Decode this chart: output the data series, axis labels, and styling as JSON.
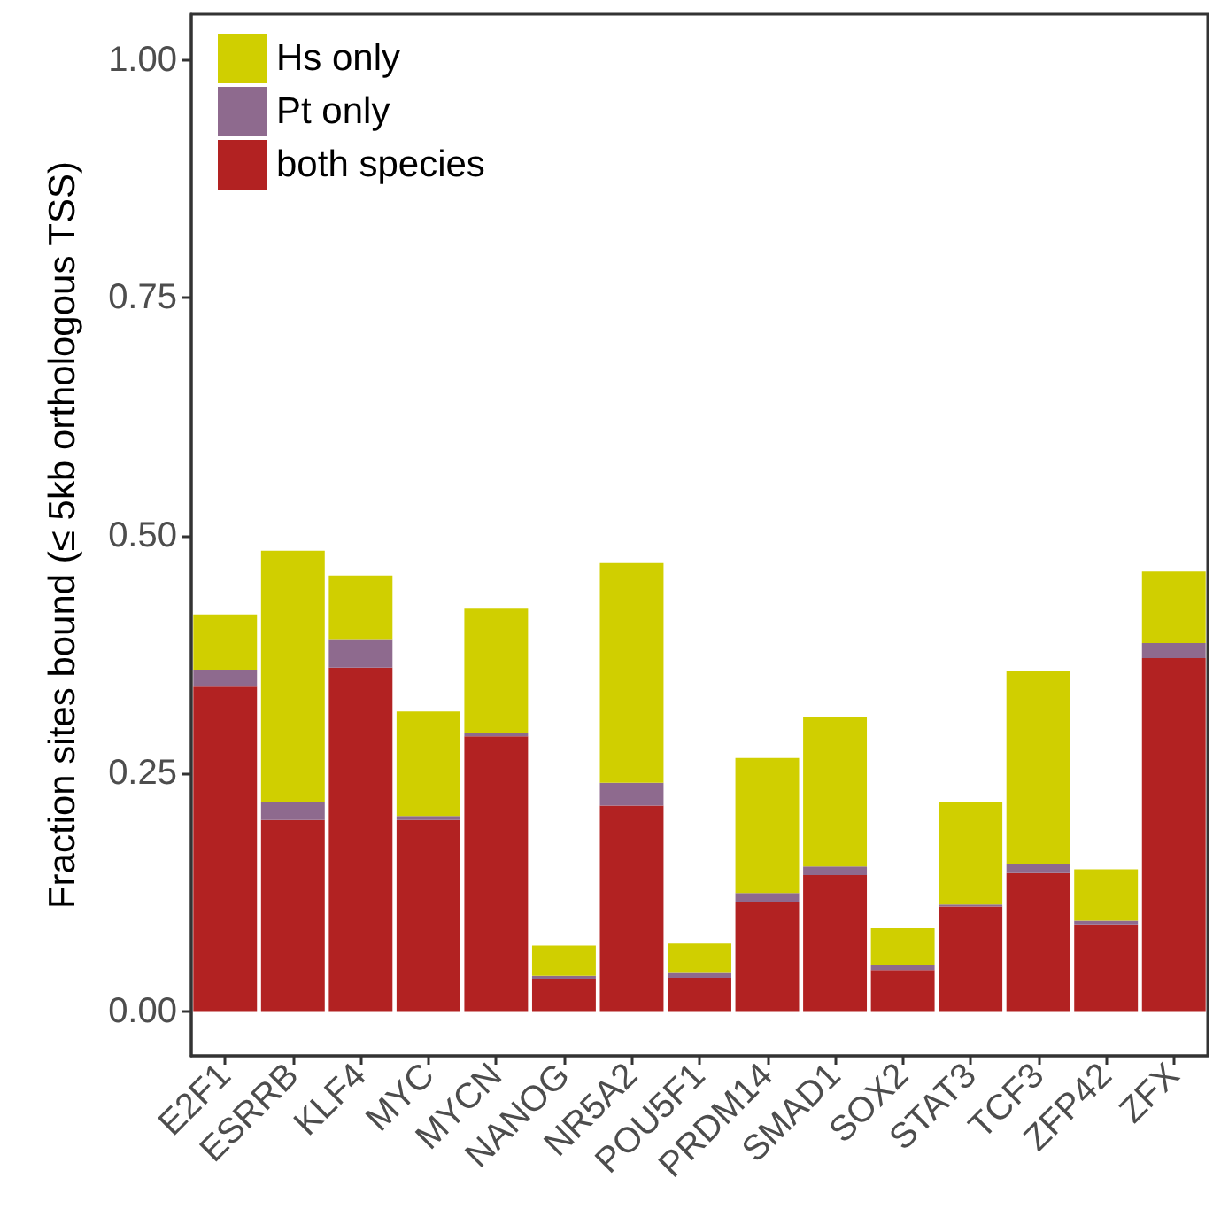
{
  "chart_data": {
    "type": "bar",
    "stacked": true,
    "ylabel": "Fraction sites bound (≤ 5kb orthologous TSS)",
    "categories": [
      "E2F1",
      "ESRRB",
      "KLF4",
      "MYC",
      "MYCN",
      "NANOG",
      "NR5A2",
      "POU5F1",
      "PRDM14",
      "SMAD1",
      "SOX2",
      "STAT3",
      "TCF3",
      "ZFP42",
      "ZFX"
    ],
    "series": [
      {
        "name": "both species",
        "color": "#b22222",
        "values": [
          0.341,
          0.201,
          0.361,
          0.201,
          0.289,
          0.034,
          0.216,
          0.035,
          0.115,
          0.143,
          0.043,
          0.11,
          0.145,
          0.091,
          0.371
        ]
      },
      {
        "name": "Pt only",
        "color": "#8e6a8e",
        "values": [
          0.018,
          0.019,
          0.03,
          0.004,
          0.003,
          0.003,
          0.024,
          0.006,
          0.009,
          0.009,
          0.005,
          0.002,
          0.01,
          0.004,
          0.016
        ]
      },
      {
        "name": "Hs only",
        "color": "#d0cf00",
        "values": [
          0.058,
          0.264,
          0.067,
          0.11,
          0.131,
          0.032,
          0.231,
          0.03,
          0.142,
          0.157,
          0.039,
          0.108,
          0.203,
          0.054,
          0.075
        ]
      }
    ],
    "ylim": [
      -0.047,
      1.048
    ],
    "yticks": [
      {
        "value": 0,
        "label": "0.00"
      },
      {
        "value": 0.25,
        "label": "0.25"
      },
      {
        "value": 0.5,
        "label": "0.50"
      },
      {
        "value": 0.75,
        "label": "0.75"
      },
      {
        "value": 1,
        "label": "1.00"
      }
    ],
    "grid": false,
    "legend": "top left"
  }
}
